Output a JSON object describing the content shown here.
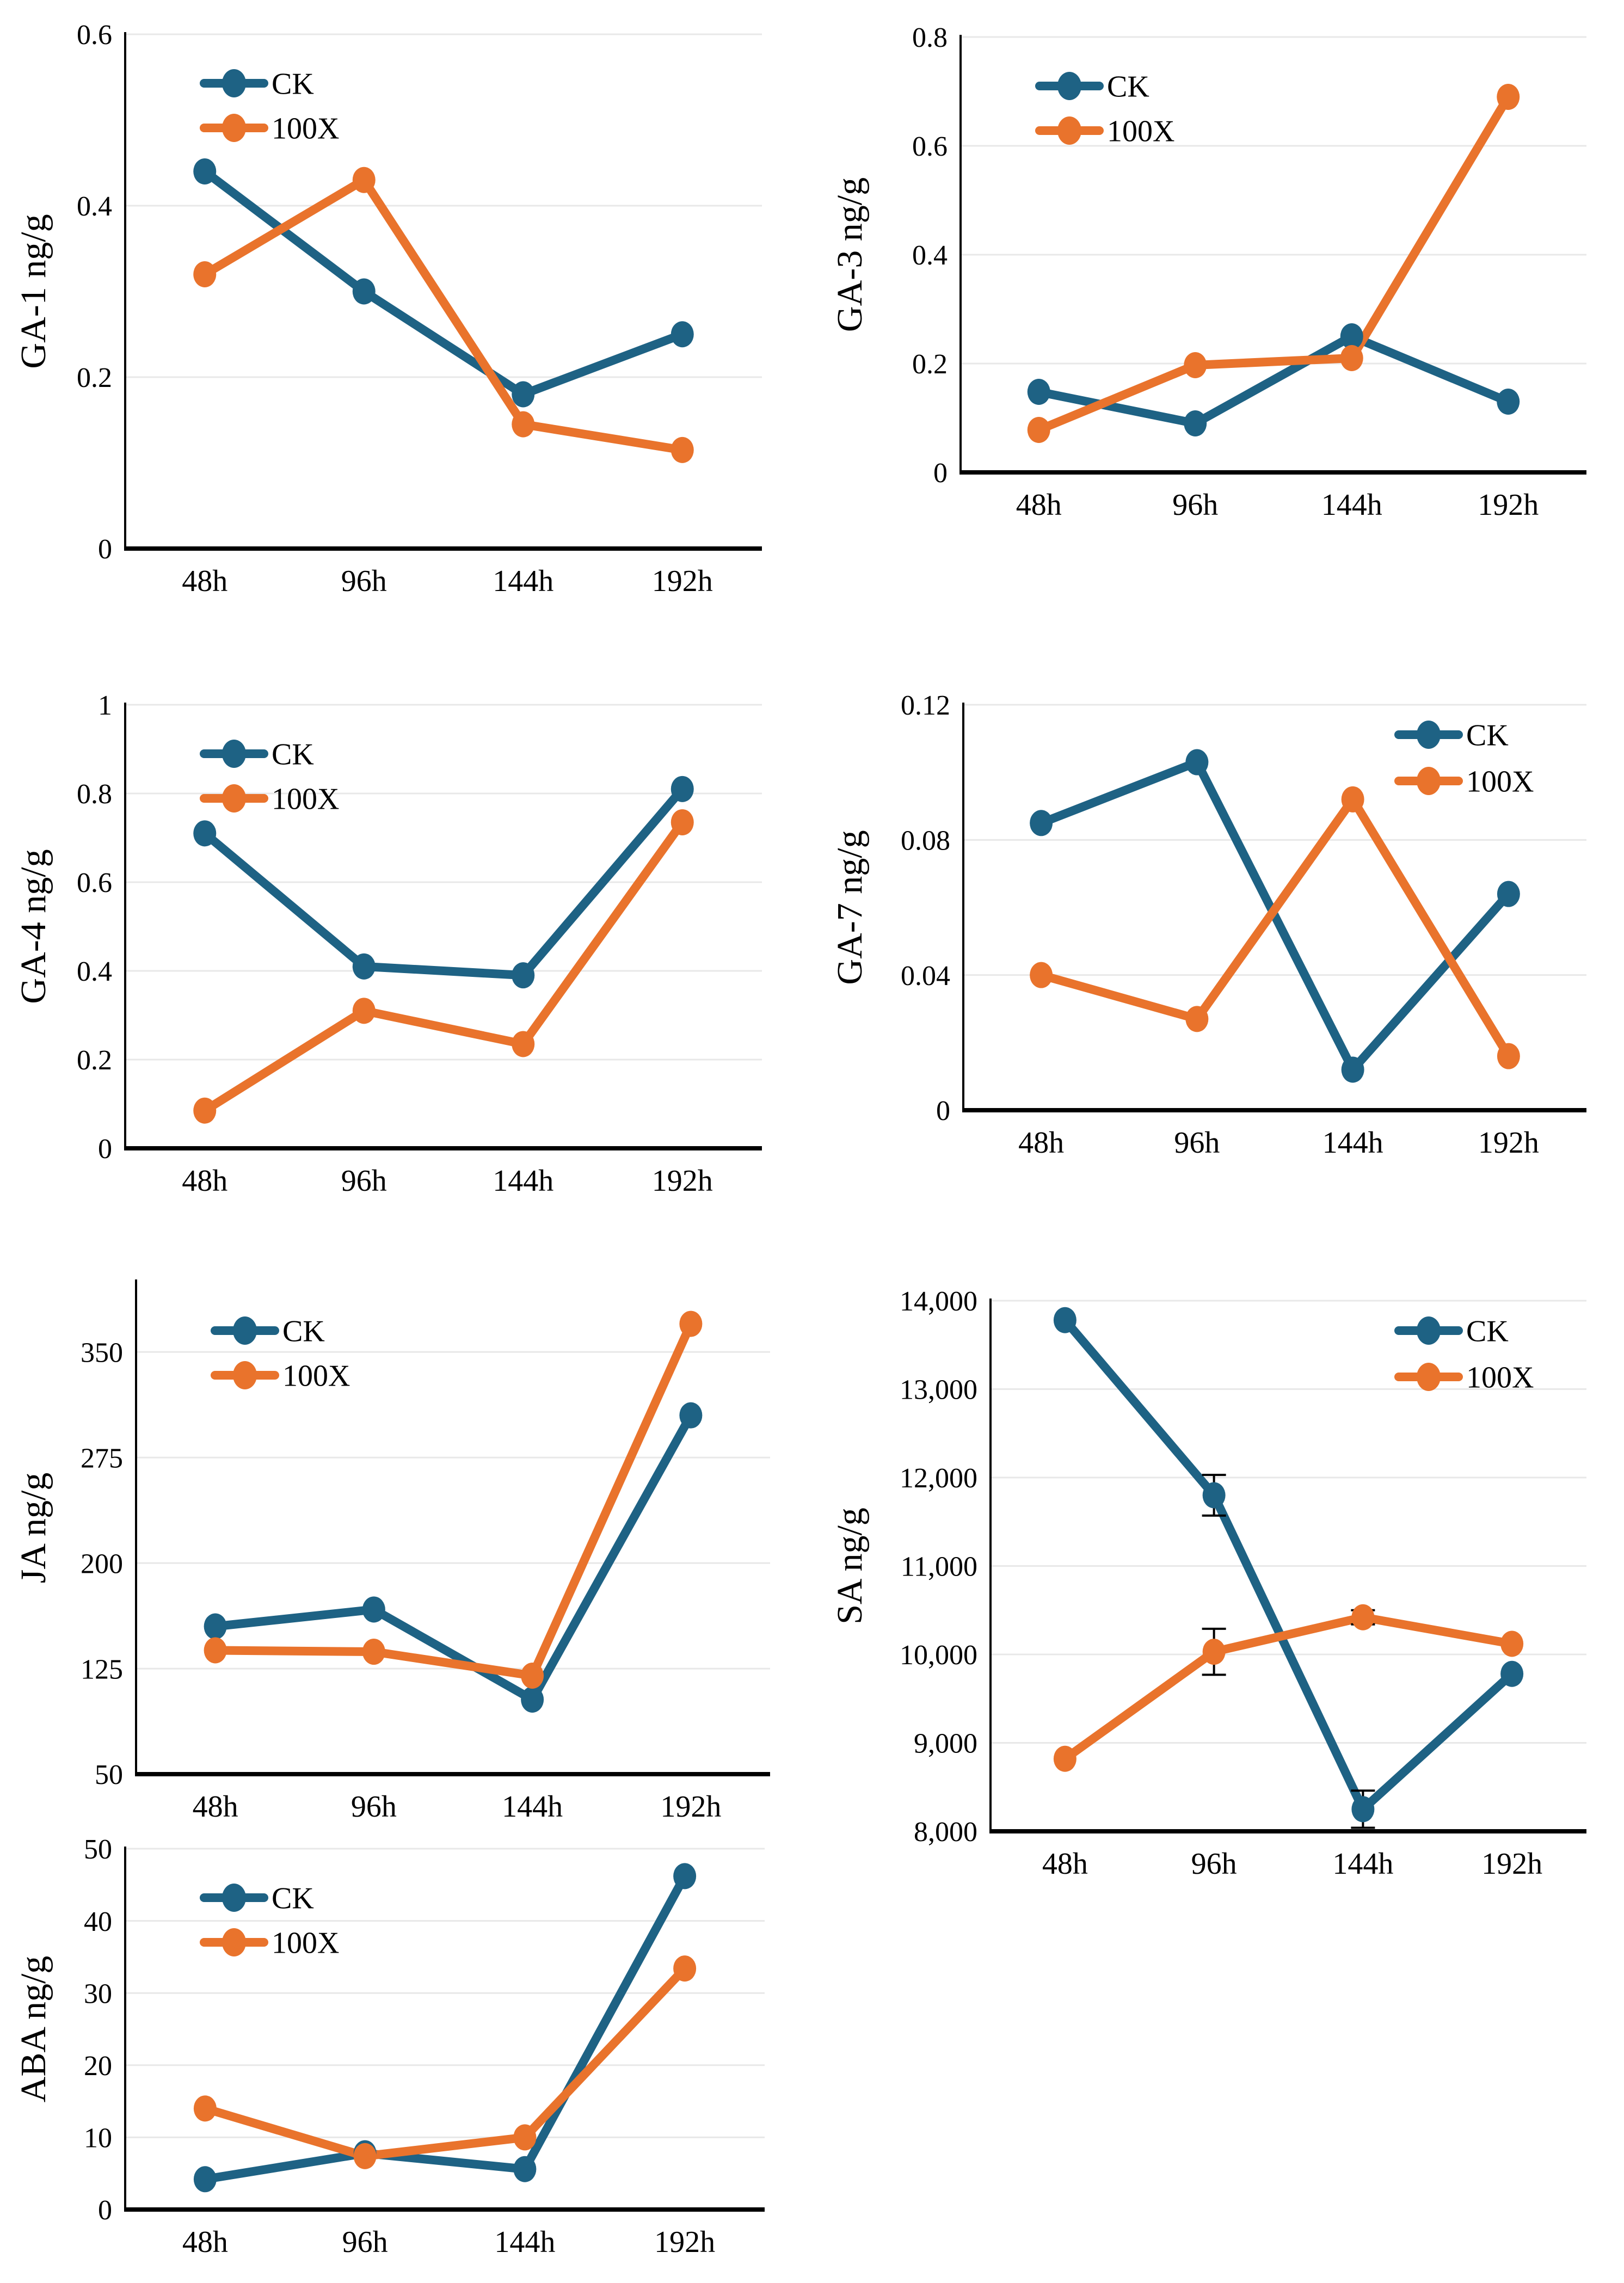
{
  "figure": {
    "x_axis_unit": "hours",
    "series_names": [
      "CK",
      "100X"
    ],
    "colors": {
      "ck": "#1E6284",
      "x100": "#E9732C",
      "gridline": "#E8E8E8",
      "axis": "#000000",
      "error_bar": "#000000",
      "text": "#000000",
      "background": "#FFFFFF"
    }
  },
  "chart_data": [
    {
      "id": "ga1",
      "type": "line",
      "ylabel": "GA-1 ng/g",
      "xlabel": "",
      "categories": [
        "48h",
        "96h",
        "144h",
        "192h"
      ],
      "ylim": [
        0,
        0.6
      ],
      "yticks": [
        0,
        0.2,
        0.4,
        0.6
      ],
      "ytick_labels": [
        "0",
        "0.2",
        "0.4",
        "0.6"
      ],
      "grid": true,
      "legend_position": "top-left",
      "series": [
        {
          "name": "CK",
          "color": "#1E6284",
          "values": [
            0.44,
            0.3,
            0.18,
            0.25
          ]
        },
        {
          "name": "100X",
          "color": "#E9732C",
          "values": [
            0.32,
            0.43,
            0.145,
            0.115
          ]
        }
      ]
    },
    {
      "id": "ga3",
      "type": "line",
      "ylabel": "GA-3 ng/g",
      "xlabel": "",
      "categories": [
        "48h",
        "96h",
        "144h",
        "192h"
      ],
      "ylim": [
        0,
        0.8
      ],
      "yticks": [
        0,
        0.2,
        0.4,
        0.6,
        0.8
      ],
      "ytick_labels": [
        "0",
        "0.2",
        "0.4",
        "0.6",
        "0.8"
      ],
      "grid": true,
      "legend_position": "top-left",
      "series": [
        {
          "name": "CK",
          "color": "#1E6284",
          "values": [
            0.148,
            0.09,
            0.25,
            0.13
          ]
        },
        {
          "name": "100X",
          "color": "#E9732C",
          "values": [
            0.078,
            0.197,
            0.21,
            0.69
          ]
        }
      ]
    },
    {
      "id": "ga4",
      "type": "line",
      "ylabel": "GA-4 ng/g",
      "xlabel": "",
      "categories": [
        "48h",
        "96h",
        "144h",
        "192h"
      ],
      "ylim": [
        0,
        1
      ],
      "yticks": [
        0,
        0.2,
        0.4,
        0.6,
        0.8,
        1
      ],
      "ytick_labels": [
        "0",
        "0.2",
        "0.4",
        "0.6",
        "0.8",
        "1"
      ],
      "grid": true,
      "legend_position": "top-left",
      "series": [
        {
          "name": "CK",
          "color": "#1E6284",
          "values": [
            0.71,
            0.41,
            0.39,
            0.81
          ]
        },
        {
          "name": "100X",
          "color": "#E9732C",
          "values": [
            0.085,
            0.31,
            0.235,
            0.735
          ]
        }
      ]
    },
    {
      "id": "ga7",
      "type": "line",
      "ylabel": "GA-7 ng/g",
      "xlabel": "",
      "categories": [
        "48h",
        "96h",
        "144h",
        "192h"
      ],
      "ylim": [
        0,
        0.12
      ],
      "yticks": [
        0,
        0.04,
        0.08,
        0.12
      ],
      "ytick_labels": [
        "0",
        "0.04",
        "0.08",
        "0.12"
      ],
      "grid": true,
      "legend_position": "top-right",
      "series": [
        {
          "name": "CK",
          "color": "#1E6284",
          "values": [
            0.085,
            0.103,
            0.012,
            0.064
          ]
        },
        {
          "name": "100X",
          "color": "#E9732C",
          "values": [
            0.04,
            0.027,
            0.092,
            0.016
          ]
        }
      ]
    },
    {
      "id": "ja",
      "type": "line",
      "ylabel": "JA ng/g",
      "xlabel": "",
      "categories": [
        "48h",
        "96h",
        "144h",
        "192h"
      ],
      "ylim": [
        50,
        400
      ],
      "yticks": [
        50,
        125,
        200,
        275,
        350
      ],
      "ytick_labels": [
        "50",
        "125",
        "200",
        "275",
        "350"
      ],
      "grid": true,
      "legend_position": "top-left",
      "series": [
        {
          "name": "CK",
          "color": "#1E6284",
          "values": [
            155,
            167,
            103,
            305
          ]
        },
        {
          "name": "100X",
          "color": "#E9732C",
          "values": [
            138,
            137,
            120,
            370
          ]
        }
      ]
    },
    {
      "id": "sa",
      "type": "line",
      "ylabel": "SA ng/g",
      "xlabel": "",
      "categories": [
        "48h",
        "96h",
        "144h",
        "192h"
      ],
      "ylim": [
        8000,
        14000
      ],
      "yticks": [
        8000,
        9000,
        10000,
        11000,
        12000,
        13000,
        14000
      ],
      "ytick_labels": [
        "8,000",
        "9,000",
        "10,000",
        "11,000",
        "12,000",
        "13,000",
        "14,000"
      ],
      "grid": true,
      "legend_position": "top-right",
      "series": [
        {
          "name": "CK",
          "color": "#1E6284",
          "values": [
            13780,
            11800,
            8250,
            9780
          ],
          "errors": [
            null,
            230,
            210,
            null
          ]
        },
        {
          "name": "100X",
          "color": "#E9732C",
          "values": [
            8820,
            10030,
            10420,
            10120
          ],
          "errors": [
            null,
            260,
            80,
            null
          ]
        }
      ]
    },
    {
      "id": "aba",
      "type": "line",
      "ylabel": "ABA ng/g",
      "xlabel": "",
      "categories": [
        "48h",
        "96h",
        "144h",
        "192h"
      ],
      "ylim": [
        0,
        50
      ],
      "yticks": [
        0,
        10,
        20,
        30,
        40,
        50
      ],
      "ytick_labels": [
        "0",
        "10",
        "20",
        "30",
        "40",
        "50"
      ],
      "grid": true,
      "legend_position": "top-left",
      "series": [
        {
          "name": "CK",
          "color": "#1E6284",
          "values": [
            4.2,
            7.8,
            5.6,
            46.2
          ]
        },
        {
          "name": "100X",
          "color": "#E9732C",
          "values": [
            14,
            7.4,
            10,
            33.4
          ]
        }
      ]
    }
  ]
}
